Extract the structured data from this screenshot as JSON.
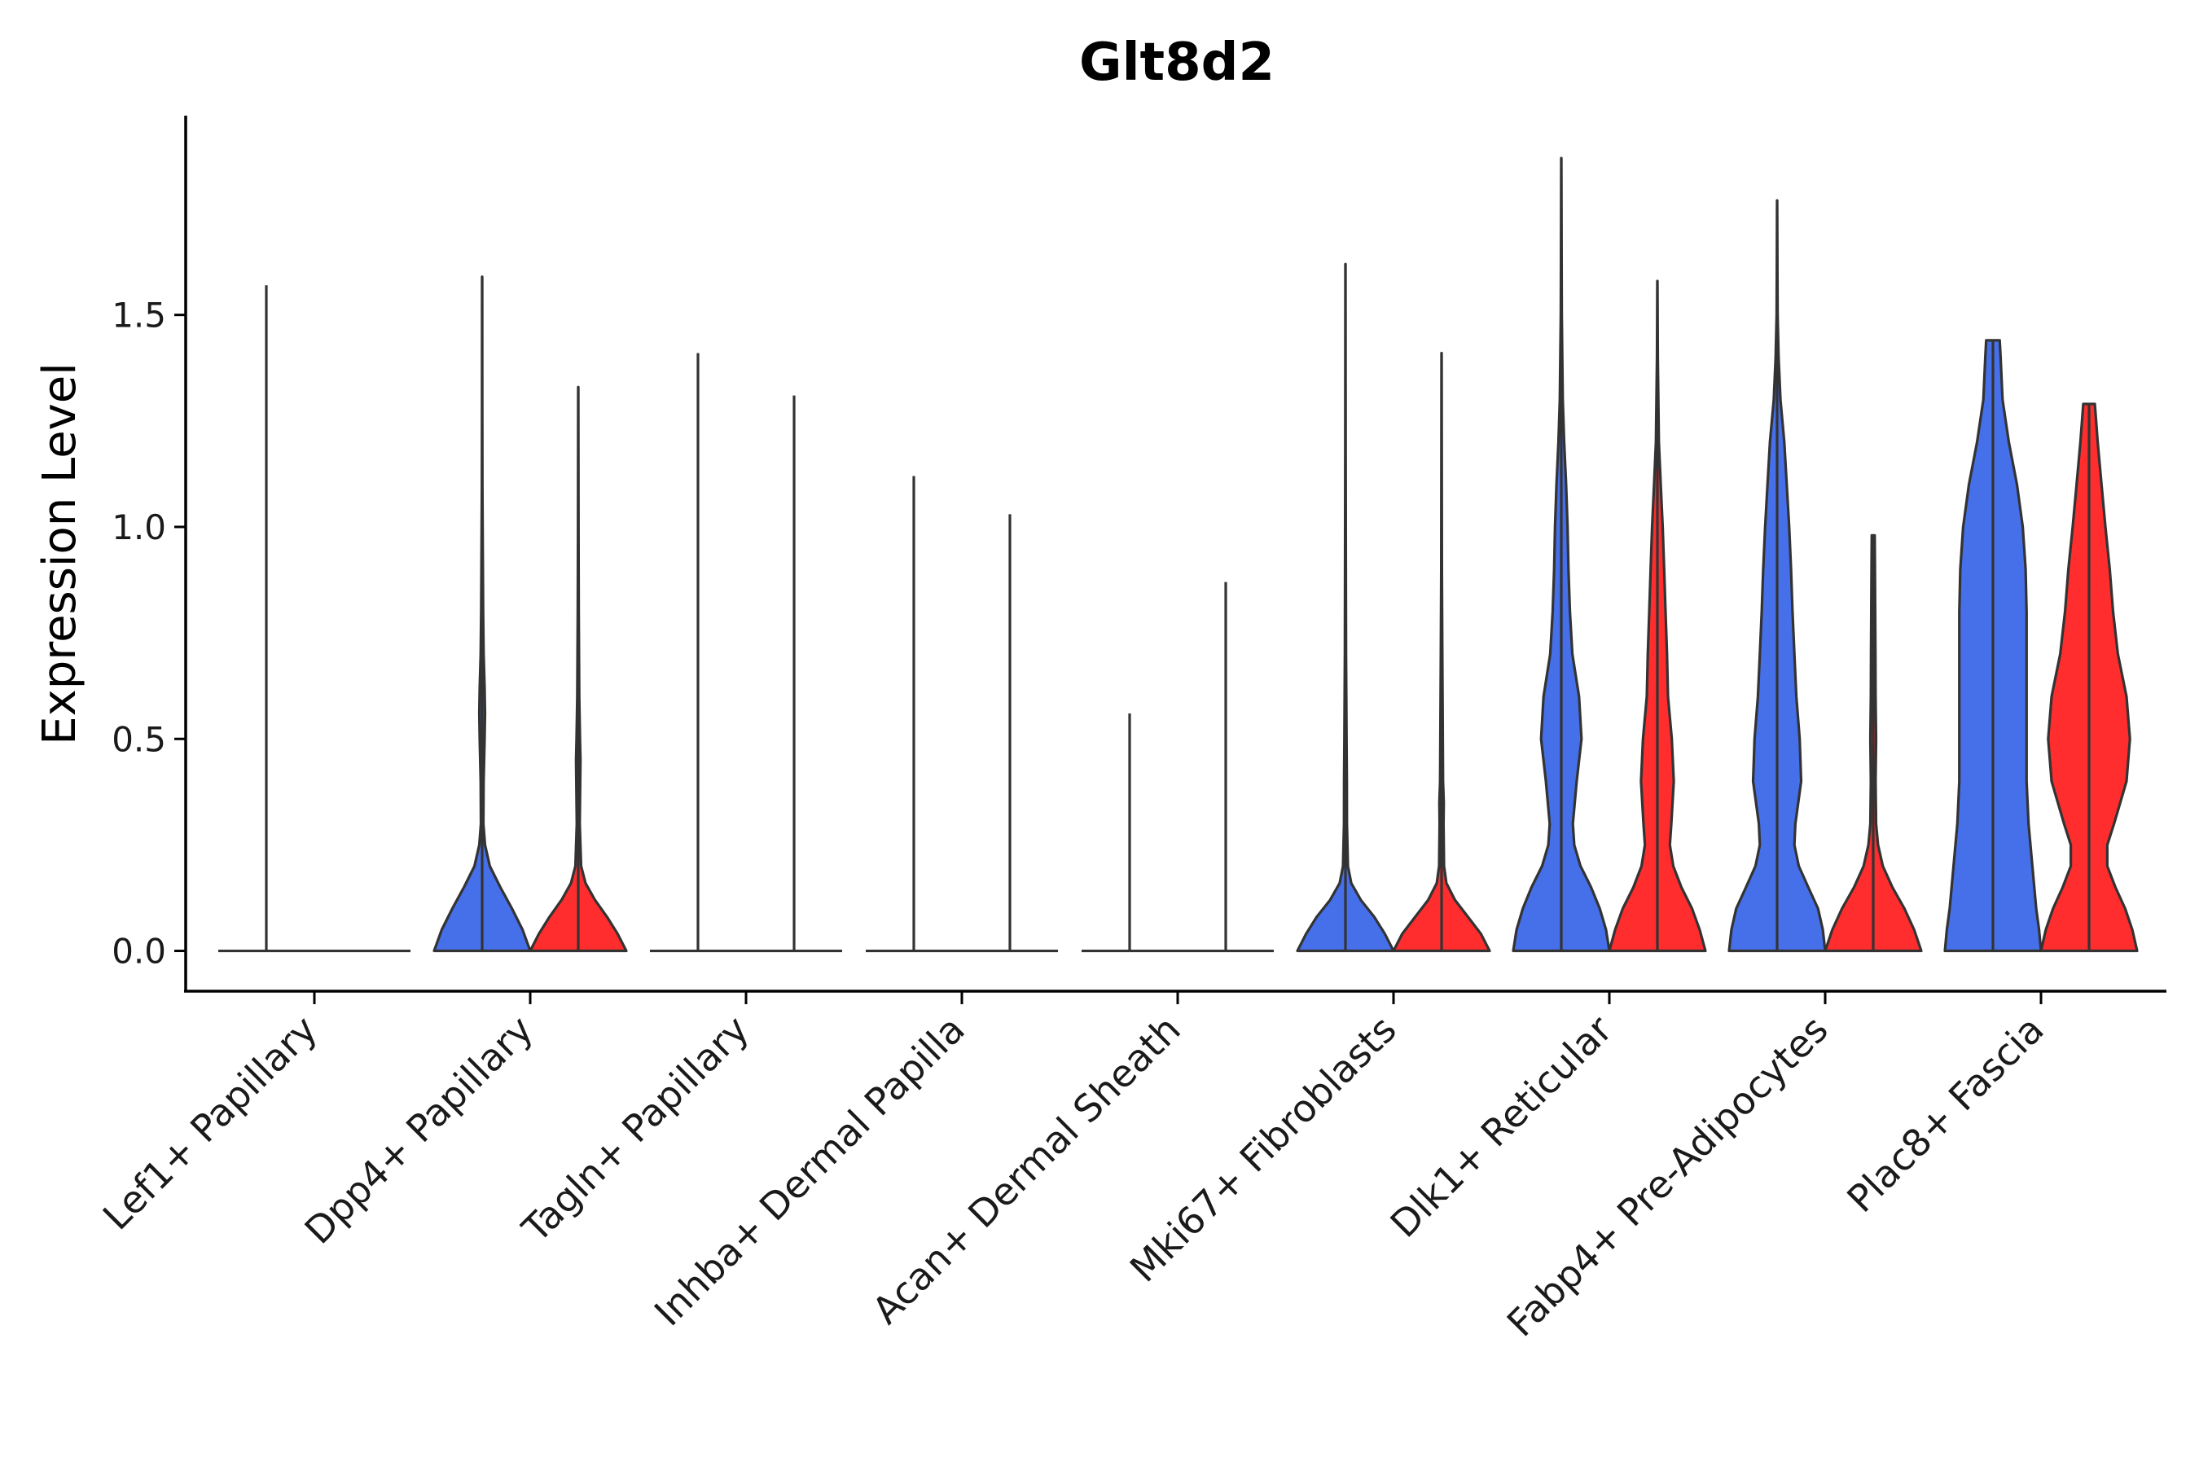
{
  "chart_data": {
    "type": "violin",
    "title": "Glt8d2",
    "xlabel": "",
    "ylabel": "Expression Level",
    "ylim": [
      -0.095,
      1.97
    ],
    "yticks": [
      0.0,
      0.5,
      1.0,
      1.5
    ],
    "ytick_labels": [
      "0.0",
      "0.5",
      "1.0",
      "1.5"
    ],
    "grid": false,
    "legend": "none",
    "series_colors": {
      "group1": "#4670EA",
      "group2": "#FF2D2D"
    },
    "categories": [
      {
        "label": "Lef1+ Papillary",
        "violins": [
          {
            "color": "#4670EA",
            "max": 1.57,
            "width": 0.0,
            "profile": []
          },
          {
            "color": "#FF2D2D",
            "max": 0.0,
            "width": 0.0,
            "profile": []
          }
        ]
      },
      {
        "label": "Dpp4+ Papillary",
        "violins": [
          {
            "color": "#4670EA",
            "max": 1.59,
            "width": 0.49,
            "profile": [
              [
                0,
                1
              ],
              [
                0.05,
                0.84
              ],
              [
                0.1,
                0.62
              ],
              [
                0.15,
                0.38
              ],
              [
                0.2,
                0.16
              ],
              [
                0.25,
                0.06
              ],
              [
                0.3,
                0.025
              ],
              [
                0.4,
                0.03
              ],
              [
                0.5,
                0.05
              ],
              [
                0.56,
                0.06
              ],
              [
                0.62,
                0.05
              ],
              [
                0.7,
                0.03
              ],
              [
                0.8,
                0.02
              ],
              [
                0.9,
                0.015
              ],
              [
                1.0,
                0.01
              ],
              [
                1.1,
                0.005
              ],
              [
                1.3,
                0.002
              ],
              [
                1.59,
                0
              ]
            ]
          },
          {
            "color": "#FF2D2D",
            "max": 1.33,
            "width": 0.49,
            "profile": [
              [
                0,
                1
              ],
              [
                0.04,
                0.82
              ],
              [
                0.08,
                0.6
              ],
              [
                0.12,
                0.35
              ],
              [
                0.16,
                0.15
              ],
              [
                0.2,
                0.06
              ],
              [
                0.3,
                0.03
              ],
              [
                0.4,
                0.04
              ],
              [
                0.45,
                0.045
              ],
              [
                0.5,
                0.035
              ],
              [
                0.6,
                0.02
              ],
              [
                0.7,
                0.015
              ],
              [
                0.8,
                0.01
              ],
              [
                1.0,
                0.005
              ],
              [
                1.33,
                0
              ]
            ]
          }
        ]
      },
      {
        "label": "Tagln+ Papillary",
        "violins": [
          {
            "color": "#4670EA",
            "max": 1.41,
            "width": 0.0,
            "profile": []
          },
          {
            "color": "#FF2D2D",
            "max": 1.31,
            "width": 0.0,
            "profile": []
          }
        ]
      },
      {
        "label": "Inhba+ Dermal Papilla",
        "violins": [
          {
            "color": "#4670EA",
            "max": 1.12,
            "width": 0.0,
            "profile": []
          },
          {
            "color": "#FF2D2D",
            "max": 1.03,
            "width": 0.0,
            "profile": []
          }
        ]
      },
      {
        "label": "Acan+ Dermal Sheath",
        "violins": [
          {
            "color": "#4670EA",
            "max": 0.56,
            "width": 0.0,
            "profile": []
          },
          {
            "color": "#FF2D2D",
            "max": 0.87,
            "width": 0.0,
            "profile": []
          }
        ]
      },
      {
        "label": "Mki67+ Fibroblasts",
        "violins": [
          {
            "color": "#4670EA",
            "max": 1.62,
            "width": 0.49,
            "profile": [
              [
                0,
                1
              ],
              [
                0.04,
                0.82
              ],
              [
                0.08,
                0.6
              ],
              [
                0.12,
                0.32
              ],
              [
                0.16,
                0.12
              ],
              [
                0.2,
                0.05
              ],
              [
                0.3,
                0.03
              ],
              [
                0.4,
                0.028
              ],
              [
                0.5,
                0.022
              ],
              [
                0.7,
                0.012
              ],
              [
                0.9,
                0.008
              ],
              [
                1.2,
                0.004
              ],
              [
                1.62,
                0
              ]
            ]
          },
          {
            "color": "#FF2D2D",
            "max": 1.41,
            "width": 0.49,
            "profile": [
              [
                0,
                1
              ],
              [
                0.04,
                0.82
              ],
              [
                0.08,
                0.55
              ],
              [
                0.12,
                0.28
              ],
              [
                0.16,
                0.1
              ],
              [
                0.2,
                0.05
              ],
              [
                0.3,
                0.04
              ],
              [
                0.35,
                0.045
              ],
              [
                0.4,
                0.03
              ],
              [
                0.5,
                0.025
              ],
              [
                0.7,
                0.015
              ],
              [
                0.9,
                0.006
              ],
              [
                1.41,
                0
              ]
            ]
          }
        ]
      },
      {
        "label": "Dlk1+ Reticular",
        "violins": [
          {
            "color": "#4670EA",
            "max": 1.87,
            "width": 0.49,
            "profile": [
              [
                0,
                1
              ],
              [
                0.05,
                0.93
              ],
              [
                0.1,
                0.8
              ],
              [
                0.15,
                0.62
              ],
              [
                0.2,
                0.4
              ],
              [
                0.25,
                0.27
              ],
              [
                0.3,
                0.24
              ],
              [
                0.4,
                0.32
              ],
              [
                0.5,
                0.42
              ],
              [
                0.6,
                0.37
              ],
              [
                0.7,
                0.23
              ],
              [
                0.8,
                0.18
              ],
              [
                0.9,
                0.15
              ],
              [
                1.0,
                0.13
              ],
              [
                1.1,
                0.1
              ],
              [
                1.2,
                0.06
              ],
              [
                1.3,
                0.03
              ],
              [
                1.5,
                0.01
              ],
              [
                1.87,
                0
              ]
            ]
          },
          {
            "color": "#FF2D2D",
            "max": 1.58,
            "width": 0.49,
            "profile": [
              [
                0,
                1
              ],
              [
                0.05,
                0.88
              ],
              [
                0.1,
                0.72
              ],
              [
                0.15,
                0.5
              ],
              [
                0.2,
                0.33
              ],
              [
                0.25,
                0.26
              ],
              [
                0.3,
                0.29
              ],
              [
                0.4,
                0.34
              ],
              [
                0.5,
                0.3
              ],
              [
                0.6,
                0.22
              ],
              [
                0.7,
                0.2
              ],
              [
                0.8,
                0.17
              ],
              [
                0.9,
                0.14
              ],
              [
                1.0,
                0.11
              ],
              [
                1.1,
                0.07
              ],
              [
                1.2,
                0.03
              ],
              [
                1.4,
                0.008
              ],
              [
                1.58,
                0
              ]
            ]
          }
        ]
      },
      {
        "label": "Fabp4+ Pre-Adipocytes",
        "violins": [
          {
            "color": "#4670EA",
            "max": 1.77,
            "width": 0.49,
            "profile": [
              [
                0,
                1
              ],
              [
                0.05,
                0.95
              ],
              [
                0.1,
                0.85
              ],
              [
                0.15,
                0.65
              ],
              [
                0.2,
                0.45
              ],
              [
                0.25,
                0.36
              ],
              [
                0.3,
                0.38
              ],
              [
                0.4,
                0.5
              ],
              [
                0.5,
                0.47
              ],
              [
                0.6,
                0.4
              ],
              [
                0.7,
                0.36
              ],
              [
                0.8,
                0.32
              ],
              [
                0.9,
                0.29
              ],
              [
                1.0,
                0.25
              ],
              [
                1.1,
                0.2
              ],
              [
                1.2,
                0.15
              ],
              [
                1.3,
                0.07
              ],
              [
                1.4,
                0.03
              ],
              [
                1.5,
                0.01
              ],
              [
                1.77,
                0
              ]
            ]
          },
          {
            "color": "#FF2D2D",
            "max": 0.98,
            "width": 0.49,
            "profile": [
              [
                0,
                1
              ],
              [
                0.05,
                0.85
              ],
              [
                0.1,
                0.65
              ],
              [
                0.15,
                0.4
              ],
              [
                0.2,
                0.2
              ],
              [
                0.25,
                0.1
              ],
              [
                0.3,
                0.06
              ],
              [
                0.4,
                0.05
              ],
              [
                0.5,
                0.06
              ],
              [
                0.6,
                0.05
              ],
              [
                0.7,
                0.045
              ],
              [
                0.8,
                0.04
              ],
              [
                0.9,
                0.035
              ],
              [
                0.98,
                0.03
              ]
            ]
          }
        ]
      },
      {
        "label": "Plac8+ Fascia",
        "violins": [
          {
            "color": "#4670EA",
            "max": 1.44,
            "width": 0.49,
            "profile": [
              [
                0,
                1
              ],
              [
                0.05,
                0.96
              ],
              [
                0.1,
                0.9
              ],
              [
                0.2,
                0.82
              ],
              [
                0.3,
                0.74
              ],
              [
                0.4,
                0.7
              ],
              [
                0.5,
                0.7
              ],
              [
                0.6,
                0.7
              ],
              [
                0.7,
                0.7
              ],
              [
                0.8,
                0.7
              ],
              [
                0.9,
                0.68
              ],
              [
                1.0,
                0.62
              ],
              [
                1.1,
                0.5
              ],
              [
                1.2,
                0.33
              ],
              [
                1.3,
                0.2
              ],
              [
                1.4,
                0.16
              ],
              [
                1.44,
                0.14
              ]
            ]
          },
          {
            "color": "#FF2D2D",
            "max": 1.29,
            "width": 0.49,
            "profile": [
              [
                0,
                1
              ],
              [
                0.05,
                0.9
              ],
              [
                0.1,
                0.75
              ],
              [
                0.15,
                0.55
              ],
              [
                0.2,
                0.38
              ],
              [
                0.25,
                0.38
              ],
              [
                0.3,
                0.52
              ],
              [
                0.4,
                0.78
              ],
              [
                0.5,
                0.85
              ],
              [
                0.6,
                0.78
              ],
              [
                0.7,
                0.6
              ],
              [
                0.8,
                0.5
              ],
              [
                0.9,
                0.43
              ],
              [
                1.0,
                0.34
              ],
              [
                1.1,
                0.26
              ],
              [
                1.2,
                0.18
              ],
              [
                1.29,
                0.12
              ]
            ]
          }
        ]
      }
    ]
  }
}
